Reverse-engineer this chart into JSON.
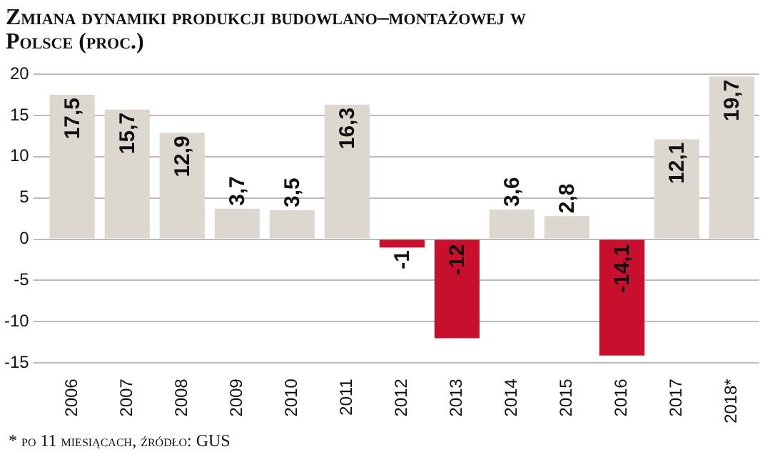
{
  "chart_data": {
    "type": "bar",
    "title": "Zmiana dynamiki produkcji budowlano–montażowej w Polsce (proc.)",
    "categories": [
      "2006",
      "2007",
      "2008",
      "2009",
      "2010",
      "2011",
      "2012",
      "2013",
      "2014",
      "2015",
      "2016",
      "2017",
      "2018*"
    ],
    "values": [
      17.5,
      15.7,
      12.9,
      3.7,
      3.5,
      16.3,
      -1,
      -12,
      3.6,
      2.8,
      -14.1,
      12.1,
      19.7
    ],
    "value_labels": [
      "17,5",
      "15,7",
      "12,9",
      "3,7",
      "3,5",
      "16,3",
      "-1",
      "-12",
      "3,6",
      "2,8",
      "-14,1",
      "12,1",
      "19,7"
    ],
    "colors": [
      "#dcd8d0",
      "#dcd8d0",
      "#dcd8d0",
      "#dcd8d0",
      "#dcd8d0",
      "#dcd8d0",
      "#c8102e",
      "#c8102e",
      "#dcd8d0",
      "#dcd8d0",
      "#c8102e",
      "#dcd8d0",
      "#dcd8d0"
    ],
    "ylim": [
      -15,
      20
    ],
    "yticks": [
      -15,
      -10,
      -5,
      0,
      5,
      10,
      15,
      20
    ],
    "grid": "y",
    "legend": false,
    "annotations": [
      "* po 11 miesiącach, źródło: GUS"
    ]
  }
}
